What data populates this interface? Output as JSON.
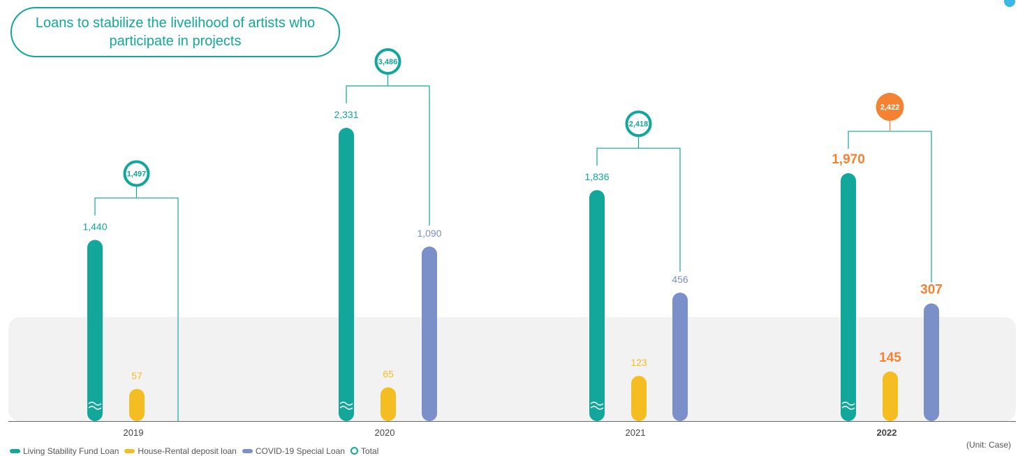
{
  "title": "Loans to stabilize the livelihood of artists who participate in projects",
  "unit": "(Unit: Case)",
  "colors": {
    "living_stability": "#12a79a",
    "house_rental": "#f4bd22",
    "covid_special": "#7b8fc9",
    "total": "#12a79a",
    "highlight": "#f58233",
    "band": "#f2f2f2"
  },
  "legend": [
    {
      "label": "Living Stability Fund Loan",
      "marker": "bar",
      "color": "#12a79a"
    },
    {
      "label": "House-Rental deposit loan",
      "marker": "bar",
      "color": "#f4bd22"
    },
    {
      "label": "COVID-19 Special Loan",
      "marker": "bar",
      "color": "#7b8fc9"
    },
    {
      "label": "Total",
      "marker": "ring",
      "color": "#12a79a"
    }
  ],
  "chart_data": {
    "type": "bar",
    "axis_break": true,
    "categories": [
      "2019",
      "2020",
      "2021",
      "2022"
    ],
    "highlight_category": "2022",
    "series": [
      {
        "name": "Living Stability Fund Loan",
        "values": [
          1440,
          2331,
          1836,
          1970
        ],
        "labels": [
          "1,440",
          "2,331",
          "1,836",
          "1,970"
        ]
      },
      {
        "name": "House-Rental deposit loan",
        "values": [
          57,
          65,
          123,
          145
        ],
        "labels": [
          "57",
          "65",
          "123",
          "145"
        ]
      },
      {
        "name": "COVID-19 Special Loan",
        "values": [
          null,
          1090,
          456,
          307
        ],
        "labels": [
          "",
          "1,090",
          "456",
          "307"
        ]
      }
    ],
    "totals": [
      1497,
      3486,
      2418,
      2422
    ],
    "total_labels": [
      "1,497",
      "3,486",
      "2,418",
      "2,422"
    ],
    "legend_position": "bottom-left"
  }
}
